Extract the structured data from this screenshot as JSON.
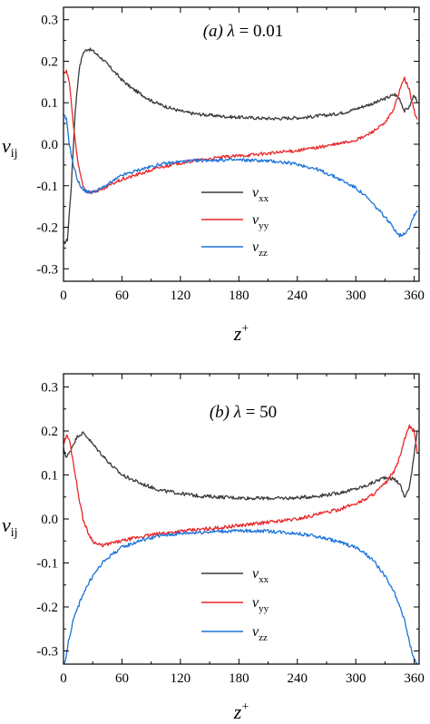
{
  "chart_data": [
    {
      "type": "line",
      "panel": "(a)",
      "annotation": "(a) λ = 0.01",
      "annotation_parts": {
        "label": "(a)",
        "symbol": "λ",
        "eq": " = 0.01"
      },
      "xlabel": "z+",
      "xlabel_parts": {
        "main": "z",
        "sup": "+"
      },
      "ylabel": "vij",
      "ylabel_parts": {
        "main": "v",
        "sub": "ij"
      },
      "xlim": [
        0,
        365
      ],
      "ylim": [
        -0.33,
        0.33
      ],
      "xticks": [
        0,
        60,
        120,
        180,
        240,
        300,
        360
      ],
      "yticks": [
        -0.3,
        -0.2,
        -0.1,
        0.0,
        0.1,
        0.2,
        0.3
      ],
      "ytick_labels": [
        "-0.3",
        "-0.2",
        "-0.1",
        "0.0",
        "0.1",
        "0.2",
        "0.3"
      ],
      "legend_position": "lower-center",
      "series": [
        {
          "name": "vxx",
          "name_parts": {
            "main": "v",
            "sub": "xx"
          },
          "color": "#3a3a3a",
          "x": [
            0,
            4,
            8,
            12,
            16,
            20,
            25,
            30,
            35,
            40,
            50,
            60,
            70,
            80,
            90,
            100,
            110,
            120,
            130,
            140,
            150,
            160,
            170,
            180,
            190,
            200,
            210,
            220,
            230,
            240,
            250,
            260,
            270,
            280,
            290,
            300,
            310,
            320,
            330,
            335,
            340,
            345,
            350,
            355,
            360,
            363
          ],
          "y": [
            -0.24,
            -0.23,
            -0.1,
            0.08,
            0.18,
            0.22,
            0.23,
            0.225,
            0.215,
            0.205,
            0.18,
            0.155,
            0.135,
            0.12,
            0.105,
            0.095,
            0.087,
            0.08,
            0.075,
            0.072,
            0.07,
            0.068,
            0.066,
            0.065,
            0.064,
            0.063,
            0.062,
            0.062,
            0.063,
            0.064,
            0.065,
            0.068,
            0.07,
            0.073,
            0.078,
            0.085,
            0.093,
            0.1,
            0.11,
            0.115,
            0.12,
            0.11,
            0.08,
            0.09,
            0.12,
            0.1
          ]
        },
        {
          "name": "vyy",
          "name_parts": {
            "main": "v",
            "sub": "yy"
          },
          "color": "#e8262a",
          "x": [
            0,
            3,
            6,
            10,
            15,
            20,
            25,
            30,
            40,
            50,
            60,
            80,
            100,
            120,
            140,
            160,
            180,
            200,
            220,
            240,
            260,
            280,
            300,
            310,
            320,
            330,
            340,
            345,
            350,
            355,
            360,
            363
          ],
          "y": [
            0.17,
            0.175,
            0.15,
            0.05,
            -0.05,
            -0.1,
            -0.115,
            -0.115,
            -0.11,
            -0.095,
            -0.085,
            -0.07,
            -0.055,
            -0.045,
            -0.038,
            -0.032,
            -0.028,
            -0.024,
            -0.02,
            -0.015,
            -0.008,
            0.0,
            0.01,
            0.02,
            0.035,
            0.05,
            0.09,
            0.13,
            0.16,
            0.13,
            0.08,
            0.06
          ]
        },
        {
          "name": "vzz",
          "name_parts": {
            "main": "v",
            "sub": "zz"
          },
          "color": "#1b73d9",
          "x": [
            0,
            3,
            6,
            10,
            15,
            20,
            25,
            30,
            40,
            50,
            60,
            80,
            100,
            120,
            140,
            160,
            180,
            200,
            220,
            240,
            260,
            280,
            300,
            310,
            320,
            330,
            340,
            345,
            350,
            355,
            360,
            363
          ],
          "y": [
            0.07,
            0.06,
            0.0,
            -0.05,
            -0.09,
            -0.11,
            -0.115,
            -0.115,
            -0.105,
            -0.09,
            -0.075,
            -0.06,
            -0.048,
            -0.042,
            -0.039,
            -0.038,
            -0.038,
            -0.039,
            -0.042,
            -0.048,
            -0.06,
            -0.08,
            -0.105,
            -0.125,
            -0.15,
            -0.175,
            -0.205,
            -0.22,
            -0.215,
            -0.2,
            -0.17,
            -0.16
          ]
        }
      ]
    },
    {
      "type": "line",
      "panel": "(b)",
      "annotation": "(b) λ = 50",
      "annotation_parts": {
        "label": "(b)",
        "symbol": "λ",
        "eq": " = 50"
      },
      "xlabel": "z+",
      "xlabel_parts": {
        "main": "z",
        "sup": "+"
      },
      "ylabel": "vij",
      "ylabel_parts": {
        "main": "v",
        "sub": "ij"
      },
      "xlim": [
        0,
        365
      ],
      "ylim": [
        -0.33,
        0.33
      ],
      "xticks": [
        0,
        60,
        120,
        180,
        240,
        300,
        360
      ],
      "yticks": [
        -0.3,
        -0.2,
        -0.1,
        0.0,
        0.1,
        0.2,
        0.3
      ],
      "ytick_labels": [
        "-0.3",
        "-0.2",
        "-0.1",
        "0.0",
        "0.1",
        "0.2",
        "0.3"
      ],
      "legend_position": "lower-center",
      "series": [
        {
          "name": "vxx",
          "name_parts": {
            "main": "v",
            "sub": "xx"
          },
          "color": "#3a3a3a",
          "x": [
            0,
            3,
            6,
            10,
            15,
            20,
            25,
            30,
            40,
            50,
            60,
            80,
            100,
            120,
            140,
            160,
            180,
            200,
            220,
            240,
            260,
            280,
            300,
            310,
            320,
            330,
            340,
            345,
            350,
            355,
            360,
            363
          ],
          "y": [
            0.16,
            0.14,
            0.15,
            0.17,
            0.19,
            0.195,
            0.185,
            0.17,
            0.145,
            0.12,
            0.1,
            0.08,
            0.065,
            0.058,
            0.052,
            0.05,
            0.048,
            0.047,
            0.047,
            0.048,
            0.052,
            0.058,
            0.068,
            0.075,
            0.085,
            0.095,
            0.09,
            0.08,
            0.05,
            0.07,
            0.15,
            0.2
          ]
        },
        {
          "name": "vyy",
          "name_parts": {
            "main": "v",
            "sub": "yy"
          },
          "color": "#e8262a",
          "x": [
            0,
            3,
            6,
            10,
            15,
            20,
            25,
            30,
            35,
            40,
            50,
            60,
            80,
            100,
            120,
            140,
            160,
            180,
            200,
            220,
            240,
            260,
            280,
            300,
            310,
            320,
            330,
            340,
            345,
            350,
            355,
            360,
            363
          ],
          "y": [
            0.17,
            0.19,
            0.18,
            0.13,
            0.06,
            0.0,
            -0.03,
            -0.05,
            -0.058,
            -0.06,
            -0.055,
            -0.05,
            -0.04,
            -0.033,
            -0.028,
            -0.024,
            -0.02,
            -0.015,
            -0.01,
            -0.005,
            0.0,
            0.01,
            0.02,
            0.035,
            0.045,
            0.06,
            0.08,
            0.11,
            0.14,
            0.18,
            0.21,
            0.2,
            0.15
          ]
        },
        {
          "name": "vzz",
          "name_parts": {
            "main": "v",
            "sub": "zz"
          },
          "color": "#1b73d9",
          "x": [
            0,
            2,
            5,
            10,
            15,
            20,
            30,
            40,
            50,
            60,
            80,
            100,
            120,
            140,
            160,
            180,
            200,
            220,
            240,
            260,
            280,
            300,
            310,
            320,
            330,
            340,
            345,
            350,
            355,
            360,
            363
          ],
          "y": [
            -0.33,
            -0.32,
            -0.28,
            -0.23,
            -0.2,
            -0.17,
            -0.13,
            -0.1,
            -0.08,
            -0.065,
            -0.048,
            -0.038,
            -0.033,
            -0.03,
            -0.028,
            -0.027,
            -0.027,
            -0.029,
            -0.033,
            -0.04,
            -0.05,
            -0.065,
            -0.08,
            -0.1,
            -0.13,
            -0.17,
            -0.2,
            -0.23,
            -0.28,
            -0.32,
            -0.33
          ]
        }
      ]
    }
  ]
}
